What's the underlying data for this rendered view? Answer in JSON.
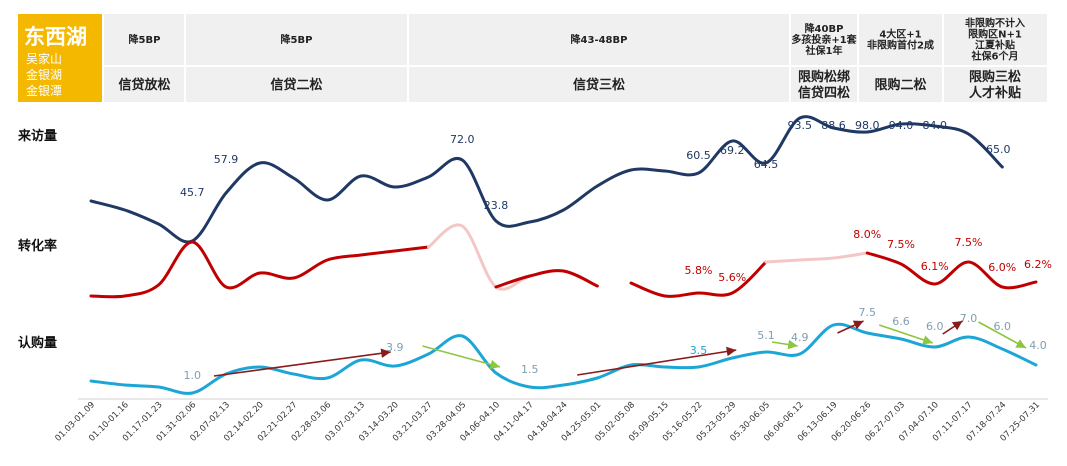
{
  "brand": {
    "title": "东西湖",
    "areas": [
      "吴家山",
      "金银湖",
      "金银潭"
    ],
    "bg_color": "#f5b800"
  },
  "header": [
    {
      "top": [
        "降5BP"
      ],
      "bottom": [
        "信贷放松"
      ]
    },
    {
      "top": [
        "降5BP"
      ],
      "bottom": [
        "信贷二松"
      ]
    },
    {
      "top": [
        "降43-48BP"
      ],
      "bottom": [
        "信贷三松"
      ]
    },
    {
      "top": [
        "降40BP",
        "多孩投亲+1套",
        "社保1年"
      ],
      "bottom": [
        "限购松绑",
        "信贷四松"
      ]
    },
    {
      "top": [
        "4大区+1",
        "非限购首付2成"
      ],
      "bottom": [
        "限购二松"
      ]
    },
    {
      "top": [
        "非限购不计入",
        "限购区N+1",
        "江夏补贴",
        "社保6个月"
      ],
      "bottom": [
        "限购三松",
        "人才补贴"
      ]
    }
  ],
  "chart_data": {
    "type": "line",
    "categories": [
      "01.03-01.09",
      "01.10-01.16",
      "01.17-01.23",
      "01.31-02.06",
      "02.07-02.13",
      "02.14-02.20",
      "02.21-02.27",
      "02.28-03.06",
      "03.07-03.13",
      "03.14-03.20",
      "03.21-03.27",
      "03.28-04.05",
      "04.06-04.10",
      "04.11-04.17",
      "04.18-04.24",
      "04.25-05.01",
      "05.02-05.08",
      "05.09-05.15",
      "05.16-05.22",
      "05.23-05.29",
      "05.30-06.05",
      "06.06-06.12",
      "06.13-06.19",
      "06.20-06.26",
      "06.27-07.03",
      "07.04-07.10",
      "07.11-07.17",
      "07.18-07.24",
      "07.25-07.31"
    ],
    "series": [
      {
        "name": "来访量",
        "color": "#1f3864",
        "labels": [
          null,
          null,
          null,
          45.7,
          57.9,
          null,
          null,
          null,
          null,
          null,
          null,
          72.0,
          23.8,
          null,
          null,
          null,
          null,
          null,
          60.5,
          69.2,
          64.5,
          93.5,
          88.6,
          98.0,
          94.0,
          84.0,
          null,
          65.0,
          null
        ]
      },
      {
        "name": "转化率",
        "color": "#c00000",
        "faded_color": "#f4c7c7",
        "labels": [
          null,
          null,
          null,
          null,
          null,
          null,
          null,
          null,
          null,
          null,
          null,
          null,
          null,
          null,
          null,
          null,
          null,
          null,
          "5.8%",
          "5.6%",
          null,
          null,
          null,
          "8.0%",
          "7.5%",
          "6.1%",
          "7.5%",
          "6.0%",
          "6.2%"
        ]
      },
      {
        "name": "认购量",
        "color": "#1ca6d6",
        "labels": [
          null,
          null,
          null,
          1.0,
          null,
          null,
          null,
          null,
          null,
          3.9,
          null,
          null,
          1.5,
          null,
          null,
          null,
          null,
          null,
          3.5,
          null,
          5.1,
          4.9,
          null,
          7.5,
          6.6,
          6.0,
          7.0,
          6.0,
          4.0
        ]
      }
    ],
    "value_labels": {
      "visitors": [
        "45.7",
        "57.9",
        "72.0",
        "23.8",
        "60.5",
        "69.2",
        "64.5",
        "93.5",
        "88.6",
        "98.0",
        "94.0",
        "84.0",
        "65.0"
      ],
      "conversion": [
        "8.0%",
        "7.5%",
        "6.1%",
        "7.5%",
        "6.0%",
        "6.2%",
        "5.8%",
        "5.6%"
      ],
      "subscriptions": [
        "1.0",
        "3.9",
        "1.5",
        "3.5",
        "5.1",
        "4.9",
        "7.5",
        "6.6",
        "6.0",
        "7.0",
        "6.0",
        "4.0"
      ]
    },
    "row_labels": [
      "来访量",
      "转化率",
      "认购量"
    ],
    "trend_arrows": [
      {
        "type": "up",
        "color": "#8b1a1a"
      },
      {
        "type": "down",
        "color": "#8dc63f"
      },
      {
        "type": "up",
        "color": "#8b1a1a"
      },
      {
        "type": "down",
        "color": "#8dc63f"
      },
      {
        "type": "up",
        "color": "#8b1a1a"
      },
      {
        "type": "down",
        "color": "#8dc63f"
      },
      {
        "type": "up",
        "color": "#8b1a1a"
      },
      {
        "type": "down",
        "color": "#8dc63f"
      }
    ]
  }
}
